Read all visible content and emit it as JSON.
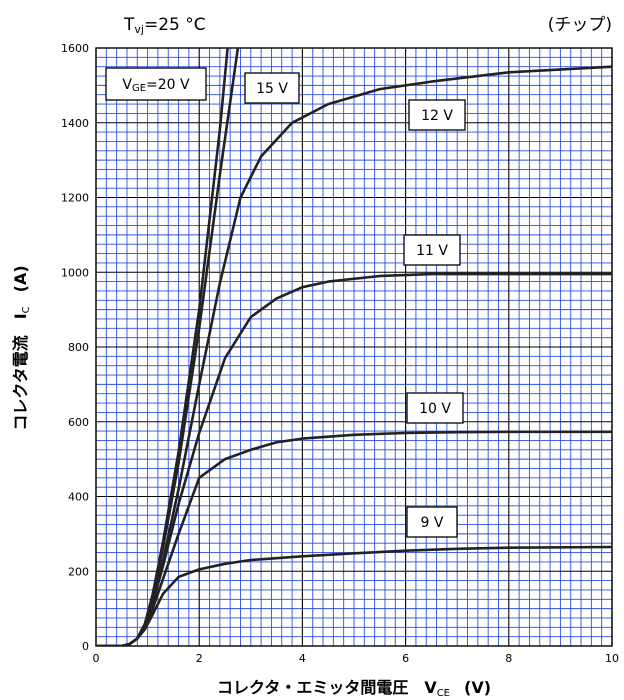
{
  "chart_data": {
    "type": "line",
    "title": "Tvj=25 °C",
    "title_parts": {
      "main": "T",
      "sub": "vj",
      "rest": "=25 °C"
    },
    "subtitle": "(チップ)",
    "xlabel": "コレクタ・エミッタ間電圧　V",
    "xlabel_sub": "CE",
    "xlabel_unit": "(V)",
    "ylabel": "コレクタ電流　I",
    "ylabel_sub": "C",
    "ylabel_unit": "(A)",
    "xlim": [
      0,
      10
    ],
    "ylim": [
      0,
      1600
    ],
    "x_ticks": [
      0,
      2,
      4,
      6,
      8,
      10
    ],
    "y_ticks": [
      0,
      200,
      400,
      600,
      800,
      1000,
      1200,
      1400,
      1600
    ],
    "grid": true,
    "grid_color": "#2b4fe0",
    "curve_color": "#222222",
    "series": [
      {
        "name": "VGE=20 V",
        "label_parts": {
          "main": "V",
          "sub": "GE",
          "rest": "=20 V"
        },
        "x": [
          0,
          0.5,
          0.65,
          0.8,
          0.95,
          1.1,
          1.3,
          1.6,
          2.0,
          2.4,
          2.55
        ],
        "y": [
          0,
          0,
          5,
          20,
          60,
          140,
          280,
          520,
          900,
          1380,
          1600
        ]
      },
      {
        "name": "15 V",
        "x": [
          0,
          0.5,
          0.65,
          0.8,
          0.95,
          1.1,
          1.3,
          1.6,
          2.0,
          2.4,
          2.75
        ],
        "y": [
          0,
          0,
          5,
          20,
          60,
          135,
          265,
          490,
          850,
          1260,
          1600
        ]
      },
      {
        "name": "12 V",
        "x": [
          0,
          0.5,
          0.65,
          0.8,
          0.95,
          1.1,
          1.3,
          1.6,
          2.0,
          2.4,
          2.8,
          3.2,
          3.8,
          4.5,
          5.5,
          6.5,
          8.0,
          10.0
        ],
        "y": [
          0,
          0,
          5,
          20,
          55,
          120,
          230,
          420,
          700,
          970,
          1200,
          1310,
          1400,
          1450,
          1490,
          1510,
          1535,
          1550
        ]
      },
      {
        "name": "11 V",
        "x": [
          0,
          0.5,
          0.65,
          0.8,
          0.95,
          1.1,
          1.3,
          1.6,
          2.0,
          2.5,
          3.0,
          3.5,
          4.0,
          4.5,
          5.5,
          6.5,
          8.0,
          10.0
        ],
        "y": [
          0,
          0,
          5,
          20,
          55,
          115,
          215,
          380,
          570,
          770,
          880,
          930,
          960,
          975,
          990,
          995,
          995,
          995
        ]
      },
      {
        "name": "10 V",
        "x": [
          0,
          0.5,
          0.65,
          0.8,
          0.95,
          1.1,
          1.3,
          1.6,
          2.0,
          2.5,
          3.0,
          3.5,
          4.0,
          5.0,
          6.0,
          7.0,
          8.0,
          10.0
        ],
        "y": [
          0,
          0,
          5,
          20,
          50,
          100,
          180,
          300,
          450,
          500,
          525,
          545,
          555,
          565,
          570,
          572,
          573,
          573
        ]
      },
      {
        "name": "9 V",
        "x": [
          0,
          0.5,
          0.65,
          0.8,
          0.95,
          1.1,
          1.3,
          1.6,
          2.0,
          2.5,
          3.0,
          4.0,
          5.0,
          6.0,
          7.0,
          8.0,
          10.0
        ],
        "y": [
          0,
          0,
          5,
          20,
          45,
          85,
          140,
          185,
          205,
          220,
          230,
          240,
          248,
          255,
          260,
          263,
          265
        ]
      }
    ]
  }
}
